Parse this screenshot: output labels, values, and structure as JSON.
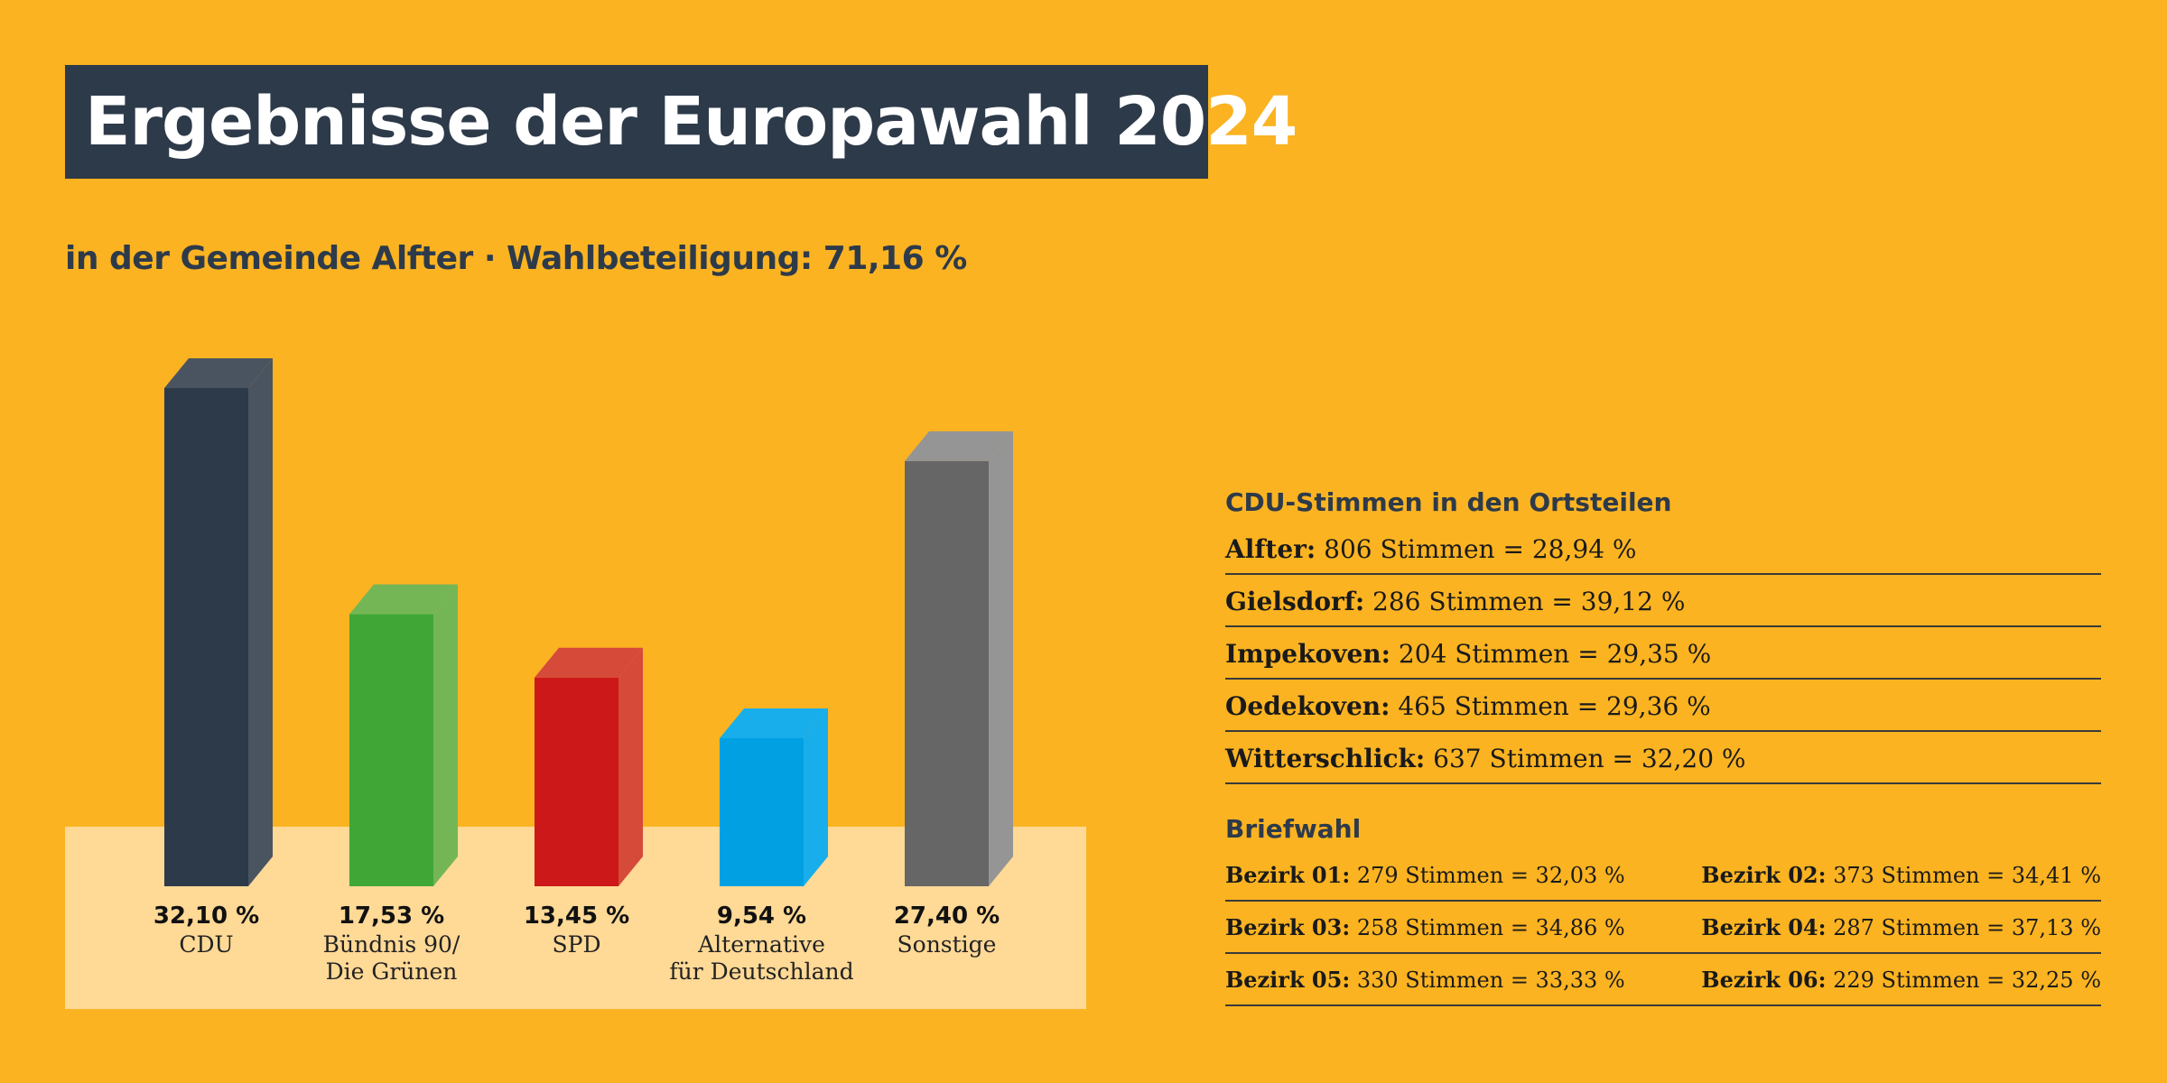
{
  "header": {
    "title": "Ergebnisse der Europawahl 2024",
    "subtitle": "in der Gemeinde Alfter · Wahlbeteiligung: 71,16 %"
  },
  "chart_data": {
    "type": "bar",
    "categories": [
      "CDU",
      "Bündnis 90/\nDie Grünen",
      "SPD",
      "Alternative\nfür Deutschland",
      "Sonstige"
    ],
    "values": [
      32.1,
      17.53,
      13.45,
      9.54,
      27.4
    ],
    "value_labels": [
      "32,10 %",
      "17,53 %",
      "13,45 %",
      "9,54 %",
      "27,40 %"
    ],
    "colors": {
      "front": [
        "#2D3A4A",
        "#40A737",
        "#CC1818",
        "#00A0E2",
        "#666666"
      ],
      "top": [
        "#4A5461",
        "#74B656",
        "#D64A3A",
        "#18AEEB",
        "#959595"
      ],
      "side": [
        "#4A5461",
        "#74B656",
        "#D64A3A",
        "#18AEEB",
        "#959595"
      ]
    },
    "ylim": [
      0,
      32.1
    ],
    "title": "",
    "xlabel": "",
    "ylabel": ""
  },
  "ortsteile": {
    "title": "CDU-Stimmen in den Ortsteilen",
    "rows": [
      {
        "name": "Alfter:",
        "text": "806 Stimmen = 28,94 %"
      },
      {
        "name": "Gielsdorf:",
        "text": "286 Stimmen = 39,12 %"
      },
      {
        "name": "Impekoven:",
        "text": "204 Stimmen = 29,35 %"
      },
      {
        "name": "Oedekoven:",
        "text": "465 Stimmen = 29,36 %"
      },
      {
        "name": "Witterschlick:",
        "text": "637 Stimmen = 32,20 %"
      }
    ]
  },
  "briefwahl": {
    "title": "Briefwahl",
    "rows": [
      {
        "name": "Bezirk 01:",
        "text": "279 Stimmen = 32,03 %"
      },
      {
        "name": "Bezirk 02:",
        "text": "373 Stimmen = 34,41 %"
      },
      {
        "name": "Bezirk 03:",
        "text": "258 Stimmen = 34,86 %"
      },
      {
        "name": "Bezirk 04:",
        "text": "287 Stimmen = 37,13 %"
      },
      {
        "name": "Bezirk 05:",
        "text": "330 Stimmen = 33,33 %"
      },
      {
        "name": "Bezirk 06:",
        "text": "229 Stimmen = 32,25 %"
      }
    ]
  },
  "theme": {
    "background": "#FBB321",
    "chart_base": "#FFD996",
    "title_box": "#2D3A4A"
  }
}
